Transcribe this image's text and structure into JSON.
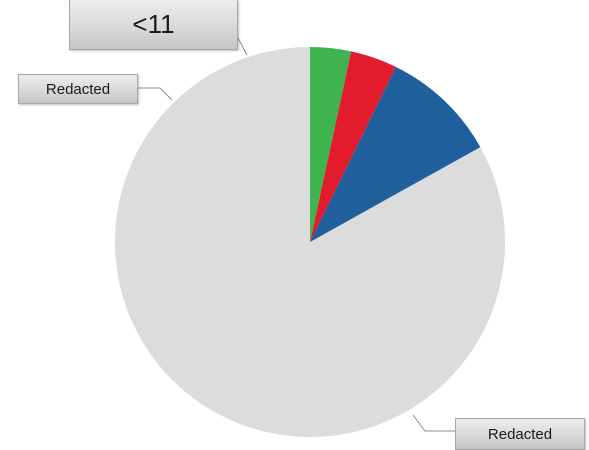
{
  "chart_data": {
    "type": "pie",
    "title": "",
    "slices": [
      {
        "label": "Redacted",
        "value": 86.0,
        "color": "#dcdcdc"
      },
      {
        "label": "Redacted",
        "value": 10.0,
        "color": "#1f5f9b"
      },
      {
        "label": "<11",
        "value": 4.0,
        "color": "#e21b2d"
      },
      {
        "label": "<11",
        "value": 3.5,
        "color": "#3fb34f"
      }
    ],
    "start_angle_deg": 0,
    "direction": "counterclockwise",
    "legend": "none"
  },
  "labels": {
    "small_slices": "<11",
    "blue_slice": "Redacted",
    "large_slice": "Redacted"
  },
  "leader_color": "#8c8c8c"
}
